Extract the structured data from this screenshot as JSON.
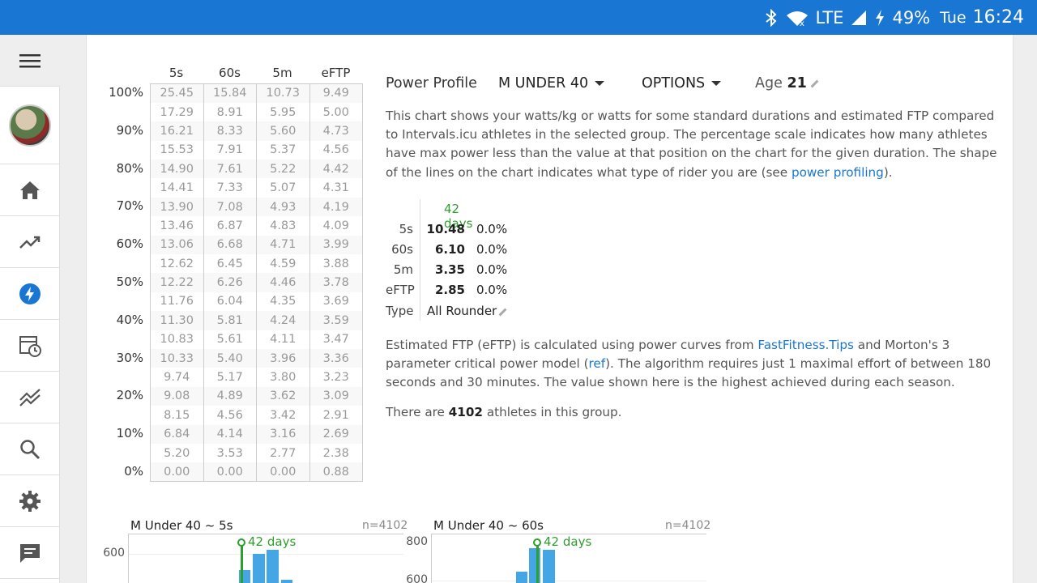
{
  "status_bar": {
    "network": "LTE",
    "battery": "49%",
    "day": "Tue",
    "time": "16:24"
  },
  "sidebar": {
    "items": [
      {
        "name": "menu",
        "icon": "menu-icon"
      },
      {
        "name": "avatar"
      },
      {
        "name": "home",
        "icon": "home-icon"
      },
      {
        "name": "fitness",
        "icon": "trending-up-icon"
      },
      {
        "name": "power",
        "icon": "bolt-icon"
      },
      {
        "name": "calendar",
        "icon": "calendar-clock-icon"
      },
      {
        "name": "compare",
        "icon": "multiline-chart-icon"
      },
      {
        "name": "search",
        "icon": "search-icon"
      },
      {
        "name": "settings",
        "icon": "gear-icon"
      },
      {
        "name": "chat",
        "icon": "chat-icon"
      }
    ]
  },
  "percentile_table": {
    "headers": [
      "5s",
      "60s",
      "5m",
      "eFTP"
    ],
    "percent_labels": [
      "100%",
      "90%",
      "80%",
      "70%",
      "60%",
      "50%",
      "40%",
      "30%",
      "20%",
      "10%",
      "0%"
    ],
    "rows": [
      [
        "25.45",
        "15.84",
        "10.73",
        "9.49"
      ],
      [
        "17.29",
        "8.91",
        "5.95",
        "5.00"
      ],
      [
        "16.21",
        "8.33",
        "5.60",
        "4.73"
      ],
      [
        "15.53",
        "7.91",
        "5.37",
        "4.56"
      ],
      [
        "14.90",
        "7.61",
        "5.22",
        "4.42"
      ],
      [
        "14.41",
        "7.33",
        "5.07",
        "4.31"
      ],
      [
        "13.90",
        "7.08",
        "4.93",
        "4.19"
      ],
      [
        "13.46",
        "6.87",
        "4.83",
        "4.09"
      ],
      [
        "13.06",
        "6.68",
        "4.71",
        "3.99"
      ],
      [
        "12.62",
        "6.45",
        "4.59",
        "3.88"
      ],
      [
        "12.22",
        "6.26",
        "4.46",
        "3.78"
      ],
      [
        "11.76",
        "6.04",
        "4.35",
        "3.69"
      ],
      [
        "11.30",
        "5.81",
        "4.24",
        "3.59"
      ],
      [
        "10.83",
        "5.61",
        "4.11",
        "3.47"
      ],
      [
        "10.33",
        "5.40",
        "3.96",
        "3.36"
      ],
      [
        "9.74",
        "5.17",
        "3.80",
        "3.23"
      ],
      [
        "9.08",
        "4.89",
        "3.62",
        "3.09"
      ],
      [
        "8.15",
        "4.56",
        "3.42",
        "2.91"
      ],
      [
        "6.84",
        "4.14",
        "3.16",
        "2.69"
      ],
      [
        "5.20",
        "3.53",
        "2.77",
        "2.38"
      ],
      [
        "0.00",
        "0.00",
        "0.00",
        "0.88"
      ]
    ]
  },
  "header": {
    "title": "Power Profile",
    "group_select": "M UNDER 40",
    "options_label": "OPTIONS",
    "age_label": "Age",
    "age_value": "21"
  },
  "description": {
    "text_before_link": "This chart shows your watts/kg or watts for some standard durations and estimated FTP compared to Intervals.icu athletes in the selected group. The percentage scale indicates how many athletes have max power less than the value at that position on the chart for the given duration. The shape of the lines on the chart indicates what type of rider you are (see ",
    "link": "power profiling",
    "text_after_link": ")."
  },
  "summary": {
    "column_header": "42 days",
    "rows": [
      {
        "label": "5s",
        "value": "10.48",
        "pct": "0.0%"
      },
      {
        "label": "60s",
        "value": "6.10",
        "pct": "0.0%"
      },
      {
        "label": "5m",
        "value": "3.35",
        "pct": "0.0%"
      },
      {
        "label": "eFTP",
        "value": "2.85",
        "pct": "0.0%"
      }
    ],
    "type_label": "Type",
    "type_value": "All Rounder"
  },
  "eftp_note": {
    "part1": "Estimated FTP (eFTP) is calculated using power curves from ",
    "link1": "FastFitness.Tips",
    "part2": " and Morton's 3 parameter critical power model (",
    "link2": "ref",
    "part3": "). The algorithm requires just 1 maximal effort of between 180 seconds and 30 minutes. The value shown here is the highest achieved during each season."
  },
  "athletes_note": {
    "before": "There are ",
    "count": "4102",
    "after": " athletes in this group."
  },
  "charts": [
    {
      "title": "M Under 40 ~ 5s",
      "n": "n=4102",
      "axis_labels": [
        "600"
      ],
      "marker_label": "42 days"
    },
    {
      "title": "M Under 40 ~ 60s",
      "n": "n=4102",
      "axis_labels": [
        "800",
        "600"
      ],
      "marker_label": "42 days"
    }
  ],
  "colors": {
    "accent": "#1976d2",
    "marker": "#2e9e2e",
    "bar": "#45a6e6"
  }
}
